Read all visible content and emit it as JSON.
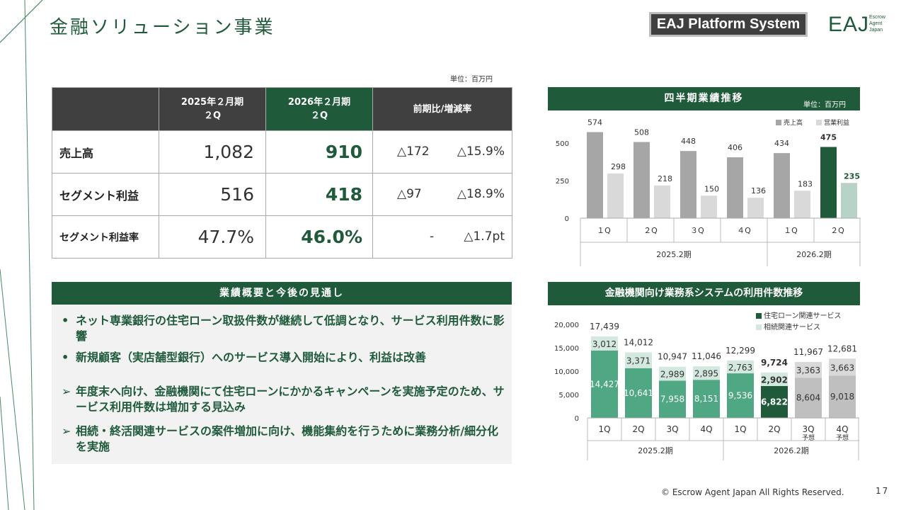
{
  "header": {
    "title": "金融ソリューション事業",
    "platform_badge": "EAJ Platform System",
    "logo": {
      "mark": "EAJ",
      "sub1": "Escrow",
      "sub2": "Agent",
      "sub3": "Japan"
    }
  },
  "table": {
    "unit": "単位：百万円",
    "col_prev_l1": "2025年２月期",
    "col_prev_l2": "２Q",
    "col_cur_l1": "2026年２月期",
    "col_cur_l2": "２Q",
    "col_cmp": "前期比/増減率",
    "rows": [
      {
        "label": "売上高",
        "prev": "1,082",
        "cur": "910",
        "diff": "△172",
        "rate": "△15.9%"
      },
      {
        "label": "セグメント利益",
        "prev": "516",
        "cur": "418",
        "diff": "△97",
        "rate": "△18.9%"
      },
      {
        "label": "セグメント利益率",
        "prev": "47.7%",
        "cur": "46.0%",
        "diff": "-",
        "rate": "△1.7pt"
      }
    ]
  },
  "outlook": {
    "title": "業績概要と今後の見通し",
    "bullets": [
      {
        "marker": "•",
        "text": "ネット専業銀行の住宅ローン取扱件数が継続して低調となり、サービス利用件数に影響"
      },
      {
        "marker": "•",
        "text": "新規顧客（実店舗型銀行）へのサービス導入開始により、利益は改善"
      },
      {
        "marker": "➢",
        "text": "年度末へ向け、金融機関にて住宅ローンにかかるキャンペーンを実施予定のため、サービス利用件数は増加する見込み"
      },
      {
        "marker": "➢",
        "text": "相続・終活関連サービスの案件増加に向け、機能集約を行うために業務分析/細分化を実施"
      }
    ]
  },
  "quarterly_chart": {
    "title": "四半期業績推移",
    "unit": "単位：百万円"
  },
  "usage_chart": {
    "title": "金融機関向け業務系システムの利用件数推移"
  },
  "footer": {
    "copyright": "© Escrow Agent Japan All Rights Reserved.",
    "page": "17"
  },
  "colors": {
    "brand_green": "#1f5a3a",
    "prev_bar": "#a6a6a6",
    "prev_profit": "#d9d9d9",
    "cur_profit": "#b7d2c6",
    "usage_actual": "#4fa784",
    "usage_actual_light": "#d3e8de",
    "usage_forecast": "#bfbfbf",
    "usage_forecast_light": "#d9d9d9"
  },
  "chart_data": [
    {
      "type": "bar",
      "title": "四半期業績推移",
      "unit": "単位：百万円",
      "categories": [
        "１Q",
        "２Q",
        "３Q",
        "４Q",
        "１Q",
        "２Q"
      ],
      "groups": [
        {
          "label": "2025.2期",
          "span": 4
        },
        {
          "label": "2026.2期",
          "span": 2
        }
      ],
      "series": [
        {
          "name": "売上高",
          "values": [
            574,
            508,
            448,
            406,
            434,
            475
          ]
        },
        {
          "name": "営業利益",
          "values": [
            298,
            218,
            150,
            136,
            183,
            235
          ]
        }
      ],
      "yticks": [
        "500",
        "250",
        "0"
      ],
      "ylim": [
        0,
        600
      ],
      "legend": "top-right"
    },
    {
      "type": "bar",
      "stacked": true,
      "title": "金融機関向け業務系システムの利用件数推移",
      "categories": [
        "1Q",
        "2Q",
        "3Q",
        "4Q",
        "1Q",
        "2Q",
        "3Q\n予想",
        "4Q\n予想"
      ],
      "groups": [
        {
          "label": "2025.2期",
          "span": 4
        },
        {
          "label": "2026.2期",
          "span": 4
        }
      ],
      "series": [
        {
          "name": "住宅ローン関連サービス",
          "values": [
            14427,
            10641,
            7958,
            8151,
            9536,
            6822,
            8604,
            9018
          ]
        },
        {
          "name": "相続関連サービス",
          "values": [
            3012,
            3371,
            2989,
            2895,
            2763,
            2902,
            3363,
            3663
          ]
        }
      ],
      "bottom_labels": [
        "14,427",
        "10,641",
        "7,958",
        "8,151",
        "9,536",
        "6,822",
        "8,604",
        "9,018"
      ],
      "top_labels": [
        "3,012",
        "3,371",
        "2,989",
        "2,895",
        "2,763",
        "2,902",
        "3,363",
        "3,663"
      ],
      "totals": [
        17439,
        14012,
        10947,
        11046,
        12299,
        9724,
        11967,
        12681
      ],
      "total_labels": [
        "17,439",
        "14,012",
        "10,947",
        "11,046",
        "12,299",
        "9,724",
        "11,967",
        "12,681"
      ],
      "yticks": [
        "20,000",
        "15,000",
        "10,000",
        "5,000",
        "0"
      ],
      "ylim": [
        0,
        20000
      ],
      "legend": "top-right"
    }
  ]
}
